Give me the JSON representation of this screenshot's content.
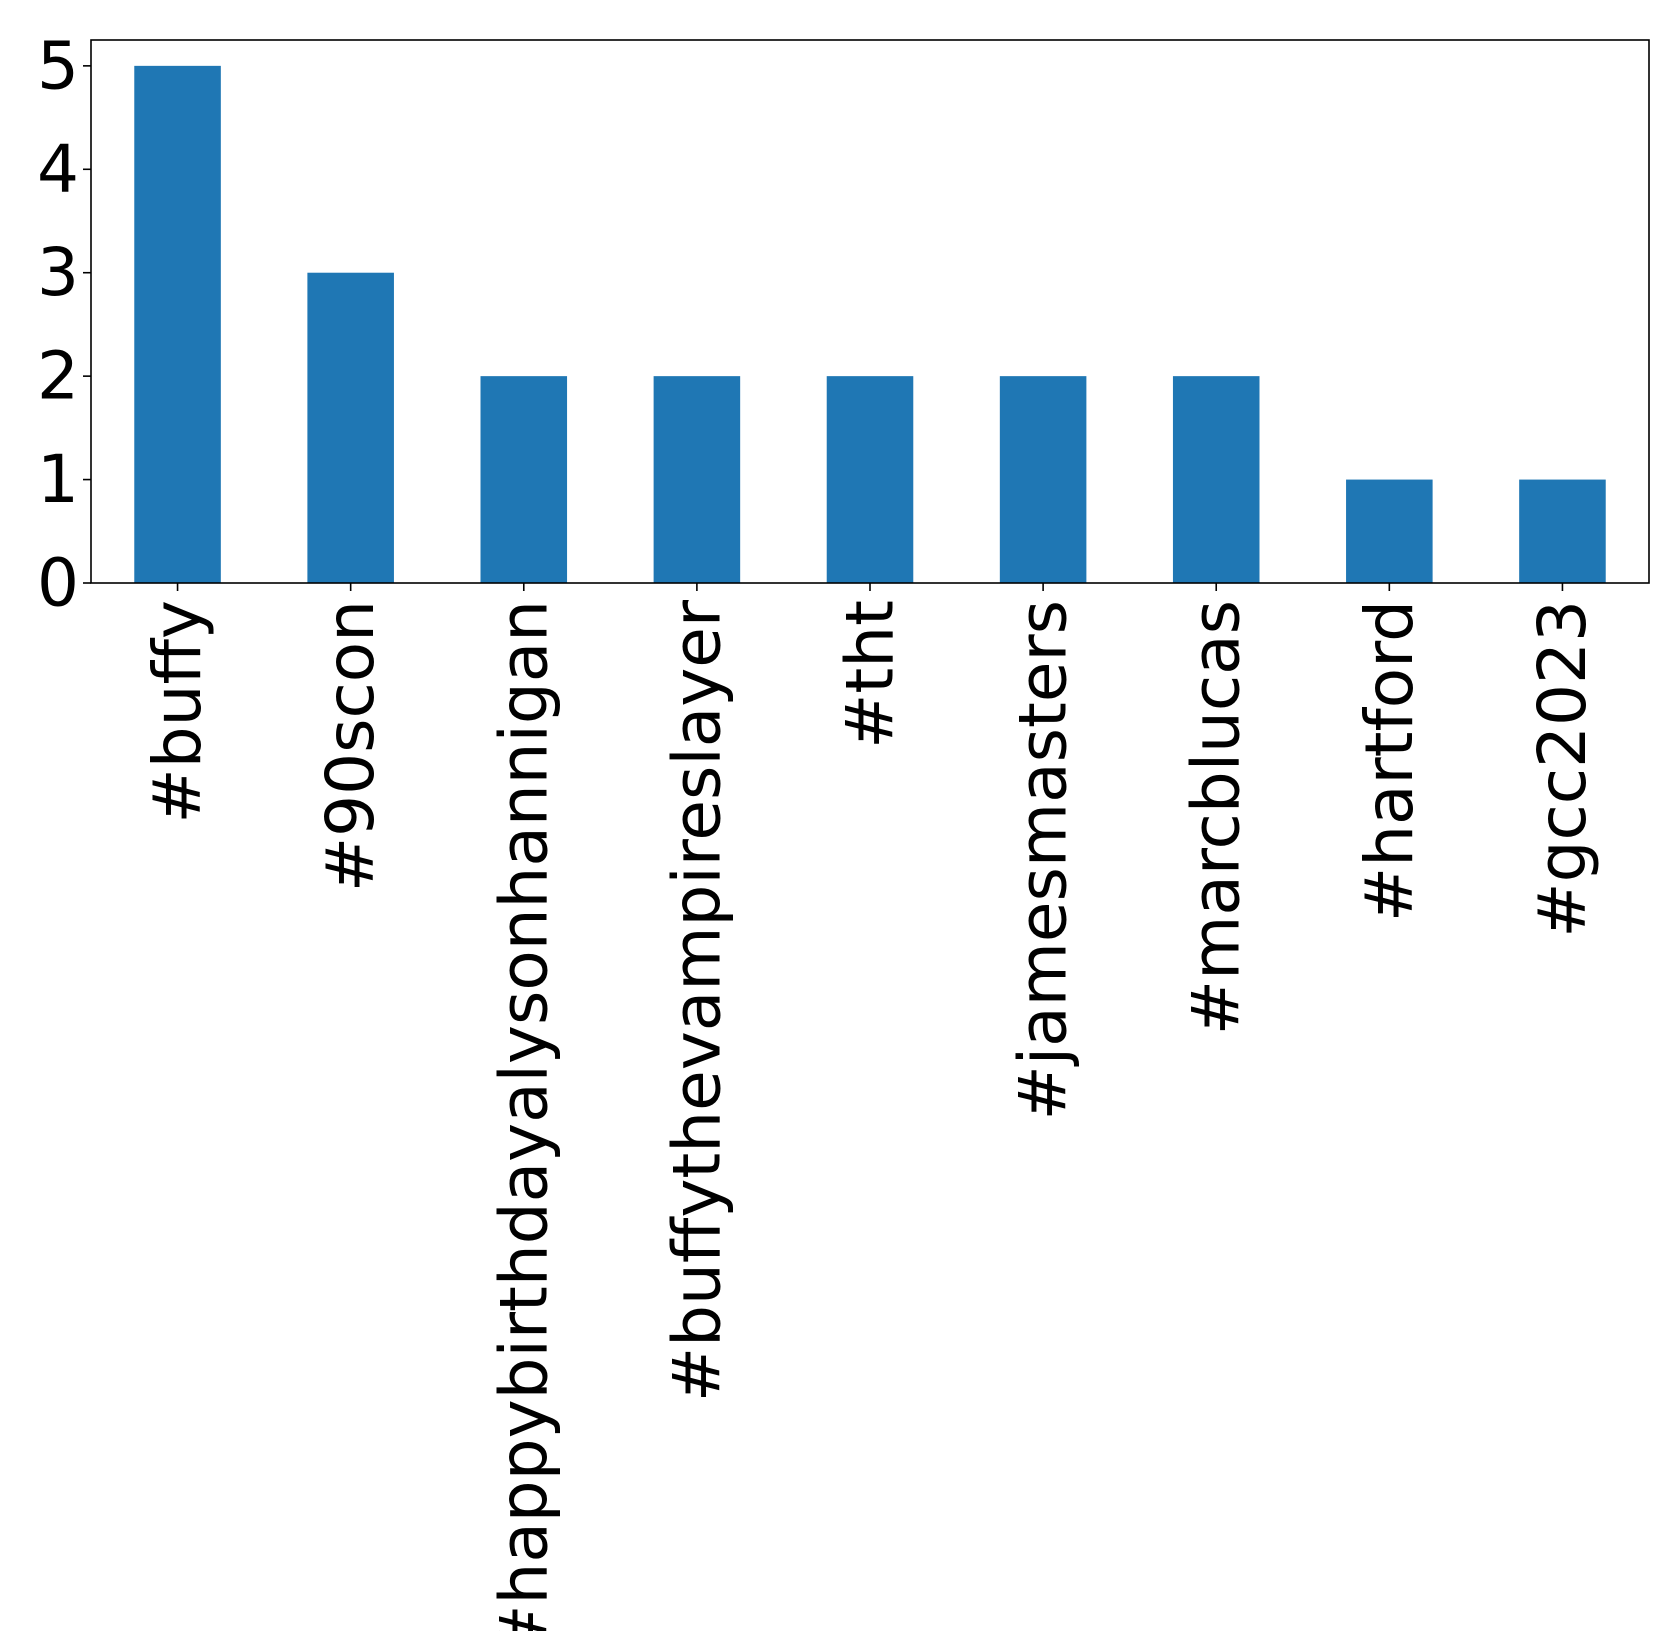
{
  "chart_data": {
    "type": "bar",
    "title": "",
    "xlabel": "",
    "ylabel": "",
    "categories": [
      "#buffy",
      "#90scon",
      "#happybirthdayalysonhannigan",
      "#buffythevampireslayer",
      "#tht",
      "#jamesmasters",
      "#marcblucas",
      "#hartford",
      "#gcc2023"
    ],
    "values": [
      5,
      3,
      2,
      2,
      2,
      2,
      2,
      1,
      1
    ],
    "ylim": [
      0,
      5.25
    ],
    "yticks": [
      0,
      1,
      2,
      3,
      4,
      5
    ],
    "grid": false,
    "legend": "none",
    "bar_color": "#1f77b4",
    "x_tick_rotation": "vertical"
  }
}
